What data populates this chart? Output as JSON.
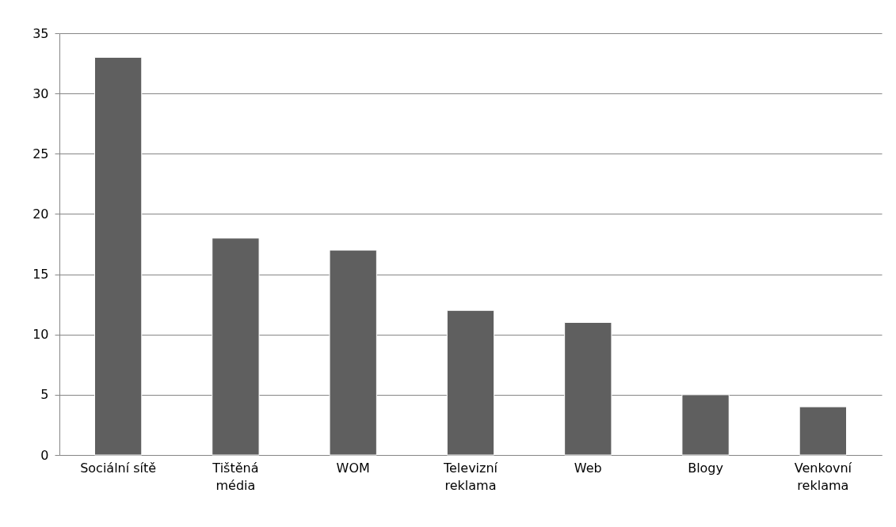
{
  "chart_data": {
    "type": "bar",
    "categories": [
      "Sociální sítě",
      "Tištěná\nmédia",
      "WOM",
      "Televizní\nreklama",
      "Web",
      "Blogy",
      "Venkovní\nreklama"
    ],
    "values": [
      33,
      18,
      17,
      12,
      11,
      5,
      4
    ],
    "color": "#5f5f5f",
    "ylim": [
      0,
      35
    ],
    "yticks": [
      0,
      5,
      10,
      15,
      20,
      25,
      30,
      35
    ],
    "grid": "y"
  }
}
